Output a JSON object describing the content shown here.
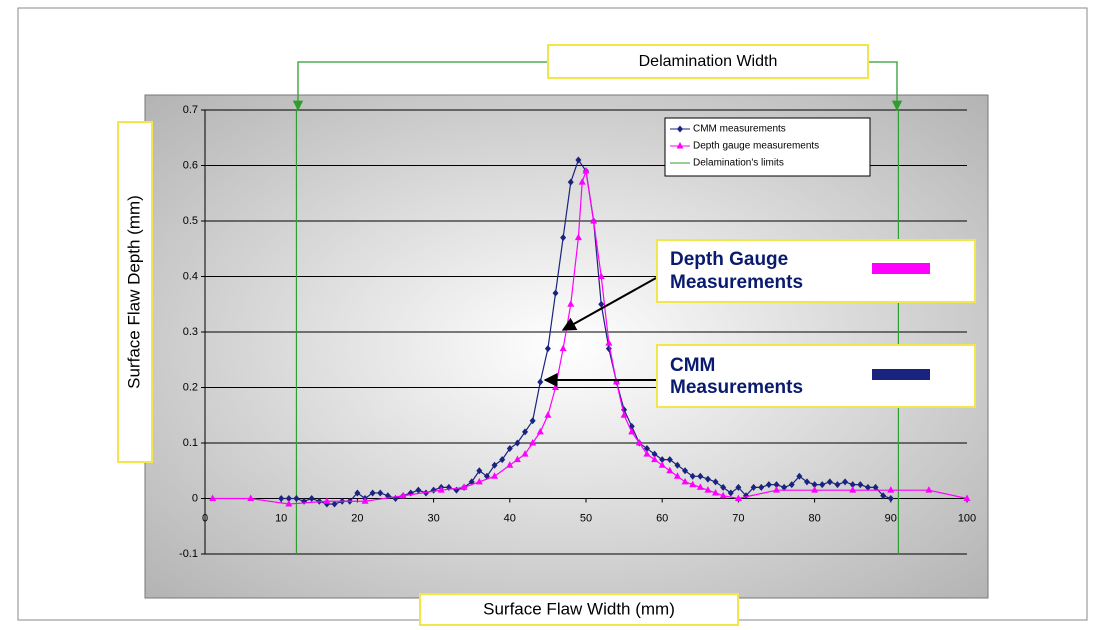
{
  "chart_data": {
    "type": "line",
    "xlabel": "Surface Flaw Width (mm)",
    "ylabel": "Surface Flaw  Depth (mm)",
    "xlim": [
      0,
      100
    ],
    "xticks": [
      0,
      10,
      20,
      30,
      40,
      50,
      60,
      70,
      80,
      90,
      100
    ],
    "ylim": [
      -0.1,
      0.7
    ],
    "yticks": [
      -0.1,
      0,
      0.1,
      0.2,
      0.3,
      0.4,
      0.5,
      0.6,
      0.7
    ],
    "grid": true,
    "legend": "upper right",
    "series": [
      {
        "name": "CMM measurements",
        "color": "#1a237e",
        "marker": "diamond",
        "x": [
          10,
          11,
          12,
          13,
          14,
          15,
          16,
          17,
          18,
          19,
          20,
          21,
          22,
          23,
          24,
          25,
          26,
          27,
          28,
          29,
          30,
          31,
          32,
          33,
          34,
          35,
          36,
          37,
          38,
          39,
          40,
          41,
          42,
          43,
          44,
          45,
          46,
          47,
          48,
          49,
          50,
          51,
          52,
          53,
          54,
          55,
          56,
          57,
          58,
          59,
          60,
          61,
          62,
          63,
          64,
          65,
          66,
          67,
          68,
          69,
          70,
          71,
          72,
          73,
          74,
          75,
          76,
          77,
          78,
          79,
          80,
          81,
          82,
          83,
          84,
          85,
          86,
          87,
          88,
          89,
          90
        ],
        "values": [
          0,
          0,
          0,
          -0.005,
          0,
          -0.005,
          -0.01,
          -0.01,
          -0.005,
          -0.005,
          0.01,
          0,
          0.01,
          0.01,
          0.005,
          0,
          0.005,
          0.01,
          0.015,
          0.01,
          0.015,
          0.02,
          0.02,
          0.015,
          0.02,
          0.03,
          0.05,
          0.04,
          0.06,
          0.07,
          0.09,
          0.1,
          0.12,
          0.14,
          0.21,
          0.27,
          0.37,
          0.47,
          0.57,
          0.61,
          0.59,
          0.5,
          0.35,
          0.27,
          0.21,
          0.16,
          0.13,
          0.1,
          0.09,
          0.08,
          0.07,
          0.07,
          0.06,
          0.05,
          0.04,
          0.04,
          0.035,
          0.03,
          0.02,
          0.01,
          0.02,
          0.005,
          0.02,
          0.02,
          0.025,
          0.025,
          0.02,
          0.025,
          0.04,
          0.03,
          0.025,
          0.025,
          0.03,
          0.025,
          0.03,
          0.025,
          0.025,
          0.02,
          0.02,
          0.005,
          0
        ]
      },
      {
        "name": "Depth gauge measurements",
        "color": "#ff00ff",
        "marker": "triangle",
        "x": [
          1,
          6,
          11,
          16,
          21,
          26,
          31,
          34,
          36,
          38,
          40,
          41,
          42,
          43,
          44,
          45,
          46,
          47,
          48,
          49,
          49.5,
          50,
          51,
          52,
          53,
          54,
          55,
          56,
          57,
          58,
          59,
          60,
          61,
          62,
          63,
          64,
          65,
          66,
          67,
          68,
          70,
          75,
          80,
          85,
          90,
          95,
          100
        ],
        "values": [
          0,
          0,
          -0.01,
          -0.005,
          -0.005,
          0.005,
          0.015,
          0.02,
          0.03,
          0.04,
          0.06,
          0.07,
          0.08,
          0.1,
          0.12,
          0.15,
          0.2,
          0.27,
          0.35,
          0.47,
          0.57,
          0.59,
          0.5,
          0.4,
          0.28,
          0.21,
          0.15,
          0.12,
          0.1,
          0.08,
          0.07,
          0.06,
          0.05,
          0.04,
          0.03,
          0.025,
          0.02,
          0.015,
          0.01,
          0.005,
          0,
          0.015,
          0.015,
          0.015,
          0.015,
          0.015,
          0
        ]
      }
    ],
    "limits": {
      "name": "Delamination's limits",
      "color": "#2e9e2e",
      "x": [
        12,
        91
      ]
    },
    "annotations": {
      "width": "Delamination Width",
      "depth_gauge": [
        "Depth Gauge",
        "Measurements"
      ],
      "cmm": [
        "CMM",
        "Measurements"
      ]
    }
  }
}
